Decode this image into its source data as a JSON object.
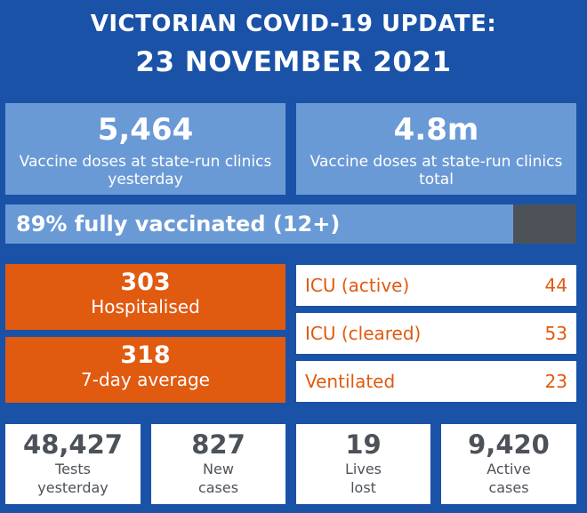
{
  "header": {
    "line1": "VICTORIAN COVID-19 UPDATE:",
    "line2": "23 NOVEMBER 2021"
  },
  "vaccine": {
    "yesterday": {
      "value": "5,464",
      "label": "Vaccine doses at state-run clinics yesterday"
    },
    "total": {
      "value": "4.8m",
      "label": "Vaccine doses at state-run clinics total"
    },
    "fully_vaccinated": {
      "label": "89% fully vaccinated (12+)",
      "percent": 89
    }
  },
  "hospital": {
    "hospitalised": {
      "value": "303",
      "label": "Hospitalised"
    },
    "average": {
      "value": "318",
      "label": "7-day average"
    },
    "rows": [
      {
        "label": "ICU (active)",
        "value": "44"
      },
      {
        "label": "ICU (cleared)",
        "value": "53"
      },
      {
        "label": "Ventilated",
        "value": "23"
      }
    ]
  },
  "stats": [
    {
      "value": "48,427",
      "line1": "Tests",
      "line2": "yesterday"
    },
    {
      "value": "827",
      "line1": "New",
      "line2": "cases"
    },
    {
      "value": "19",
      "line1": "Lives",
      "line2": "lost"
    },
    {
      "value": "9,420",
      "line1": "Active",
      "line2": "cases"
    }
  ],
  "colors": {
    "background": "#1a52a8",
    "light_blue": "#6a9ad6",
    "orange": "#e05a10",
    "dark_grey": "#4d5259",
    "white": "#ffffff"
  }
}
